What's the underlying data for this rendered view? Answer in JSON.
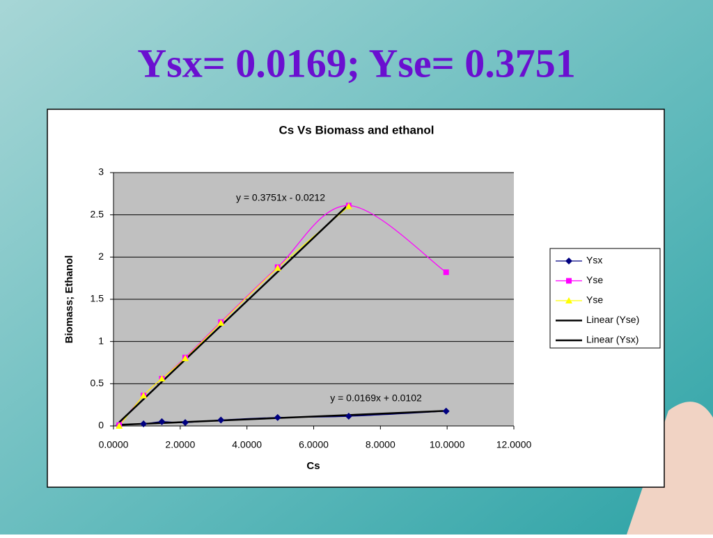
{
  "slide_title": "Ysx= 0.0169; Yse= 0.3751",
  "chart_data": {
    "type": "scatter",
    "title": "Cs Vs Biomass and ethanol",
    "x_label": "Cs",
    "y_label": "Biomass; Ethanol",
    "xlim": [
      0,
      12
    ],
    "ylim": [
      0,
      3
    ],
    "xticks": [
      {
        "value": 0,
        "label": "0.0000"
      },
      {
        "value": 2,
        "label": "2.0000"
      },
      {
        "value": 4,
        "label": "4.0000"
      },
      {
        "value": 6,
        "label": "6.0000"
      },
      {
        "value": 8,
        "label": "8.0000"
      },
      {
        "value": 10,
        "label": "10.0000"
      },
      {
        "value": 12,
        "label": "12.0000"
      }
    ],
    "yticks": [
      0,
      0.5,
      1,
      1.5,
      2,
      2.5,
      3
    ],
    "grid": true,
    "legend": "right",
    "series": [
      {
        "name": "Ysx",
        "color": "#000080",
        "marker": "diamond",
        "x": [
          0.17,
          0.9,
          1.45,
          2.15,
          3.22,
          4.92,
          7.05,
          9.97
        ],
        "values": [
          0.01,
          0.025,
          0.05,
          0.04,
          0.07,
          0.1,
          0.115,
          0.175
        ]
      },
      {
        "name": "Yse",
        "color": "#ff00ff",
        "marker": "square",
        "x": [
          0.17,
          0.9,
          1.45,
          2.15,
          3.22,
          4.92,
          7.05,
          9.97
        ],
        "values": [
          0.01,
          0.36,
          0.56,
          0.81,
          1.23,
          1.88,
          2.61,
          1.82
        ]
      },
      {
        "name": "Yse",
        "color": "#ffff00",
        "marker": "triangle",
        "x": [
          0.17,
          0.9,
          1.45,
          2.15,
          3.22,
          4.92,
          7.05
        ],
        "values": [
          0.0,
          0.36,
          0.56,
          0.8,
          1.22,
          1.87,
          2.6
        ]
      }
    ],
    "trendlines": [
      {
        "name": "Linear (Yse)",
        "color": "#000000",
        "of_series": 2,
        "slope": 0.3751,
        "intercept": -0.0212,
        "label": "y = 0.3751x - 0.0212"
      },
      {
        "name": "Linear (Ysx)",
        "color": "#000000",
        "of_series": 0,
        "slope": 0.0169,
        "intercept": 0.0102,
        "label": "y = 0.0169x + 0.0102"
      }
    ]
  }
}
